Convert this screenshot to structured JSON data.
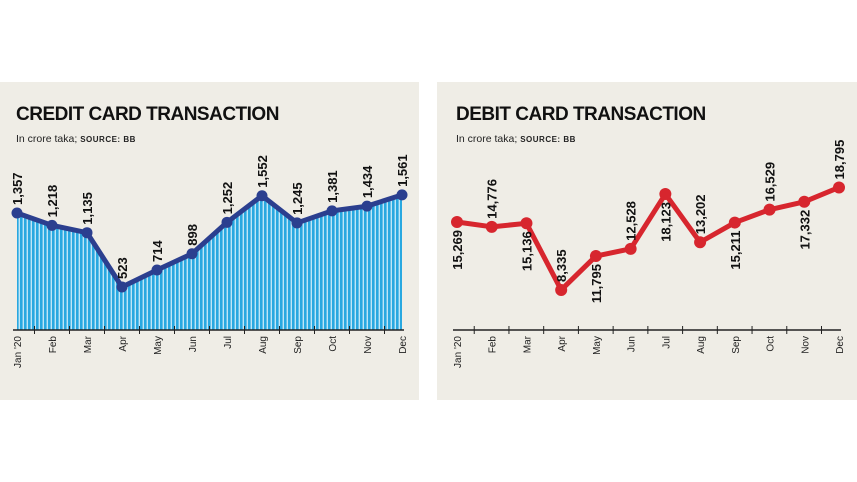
{
  "chart_data": [
    {
      "type": "area",
      "title": "CREDIT CARD TRANSACTION",
      "subtitle": "In crore taka;",
      "source": "SOURCE: BB",
      "categories": [
        "Jan '20",
        "Feb",
        "Mar",
        "Apr",
        "May",
        "Jun",
        "Jul",
        "Aug",
        "Sep",
        "Oct",
        "Nov",
        "Dec"
      ],
      "values": [
        1357,
        1218,
        1135,
        523,
        714,
        898,
        1252,
        1552,
        1245,
        1381,
        1434,
        1561
      ],
      "labels": [
        "1,357",
        "1,218",
        "1,135",
        "523",
        "714",
        "898",
        "1,252",
        "1,552",
        "1,245",
        "1,381",
        "1,434",
        "1,561"
      ],
      "line_color": "#2b3f8f",
      "fill_color": "#29a8e0",
      "grid": false
    },
    {
      "type": "line",
      "title": "DEBIT CARD TRANSACTION",
      "subtitle": "In crore taka;",
      "source": "SOURCE: BB",
      "categories": [
        "Jan '20",
        "Feb",
        "Mar",
        "Apr",
        "May",
        "Jun",
        "Jul",
        "Aug",
        "Sep",
        "Oct",
        "Nov",
        "Dec"
      ],
      "values": [
        15269,
        14776,
        15136,
        8335,
        11795,
        12528,
        18123,
        13202,
        15211,
        16529,
        17332,
        18795
      ],
      "labels": [
        "15,269",
        "14,776",
        "15,136",
        "8,335",
        "11,795",
        "12,528",
        "18,123",
        "13,202",
        "15,211",
        "16,529",
        "17,332",
        "18,795"
      ],
      "line_color": "#d7262e",
      "grid": false
    }
  ],
  "colors": {
    "panel_bg": "#efede6"
  }
}
